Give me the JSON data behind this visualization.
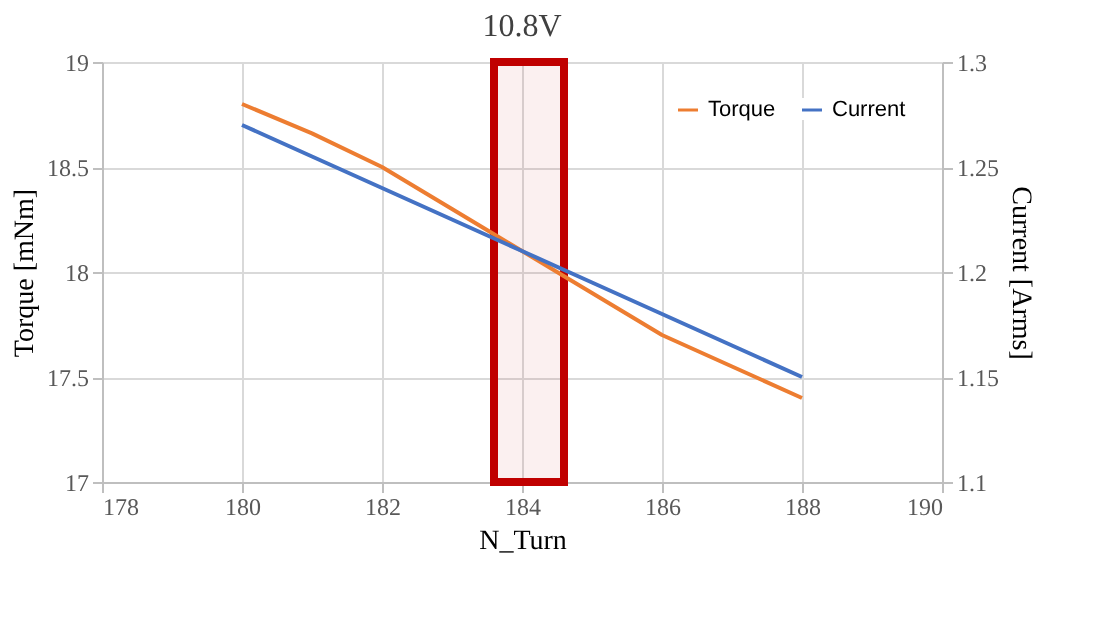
{
  "chart_data": {
    "type": "line",
    "title": "10.8V",
    "xlabel": "N_Turn",
    "ylabel": "Torque [mNm]",
    "y2label": "Current [Arms]",
    "x": [
      180,
      181,
      182,
      183,
      184,
      185,
      186,
      187,
      188
    ],
    "series": [
      {
        "name": "Torque",
        "color": "#ed7d31",
        "values": [
          18.8,
          18.66,
          18.5,
          18.3,
          18.1,
          17.9,
          17.7,
          17.55,
          17.4
        ]
      },
      {
        "name": "Current",
        "color": "#4472c4",
        "axis": "y2",
        "values": [
          1.27,
          1.255,
          1.24,
          1.225,
          1.21,
          1.195,
          1.18,
          1.165,
          1.15
        ]
      }
    ],
    "xlim": [
      178,
      190
    ],
    "xticks": [
      178,
      180,
      182,
      184,
      186,
      188,
      190
    ],
    "ylim": [
      17,
      19
    ],
    "yticks": [
      17,
      17.5,
      18,
      18.5,
      19
    ],
    "y2lim": [
      1.1,
      1.3
    ],
    "y2ticks": [
      1.1,
      1.15,
      1.2,
      1.25,
      1.3
    ],
    "bands": [
      {
        "axis": "x",
        "from": 183.6,
        "to": 184.6,
        "color": "#c00000"
      }
    ],
    "grid": true,
    "legend": "top right",
    "marker": "none",
    "line_style": "solid"
  }
}
